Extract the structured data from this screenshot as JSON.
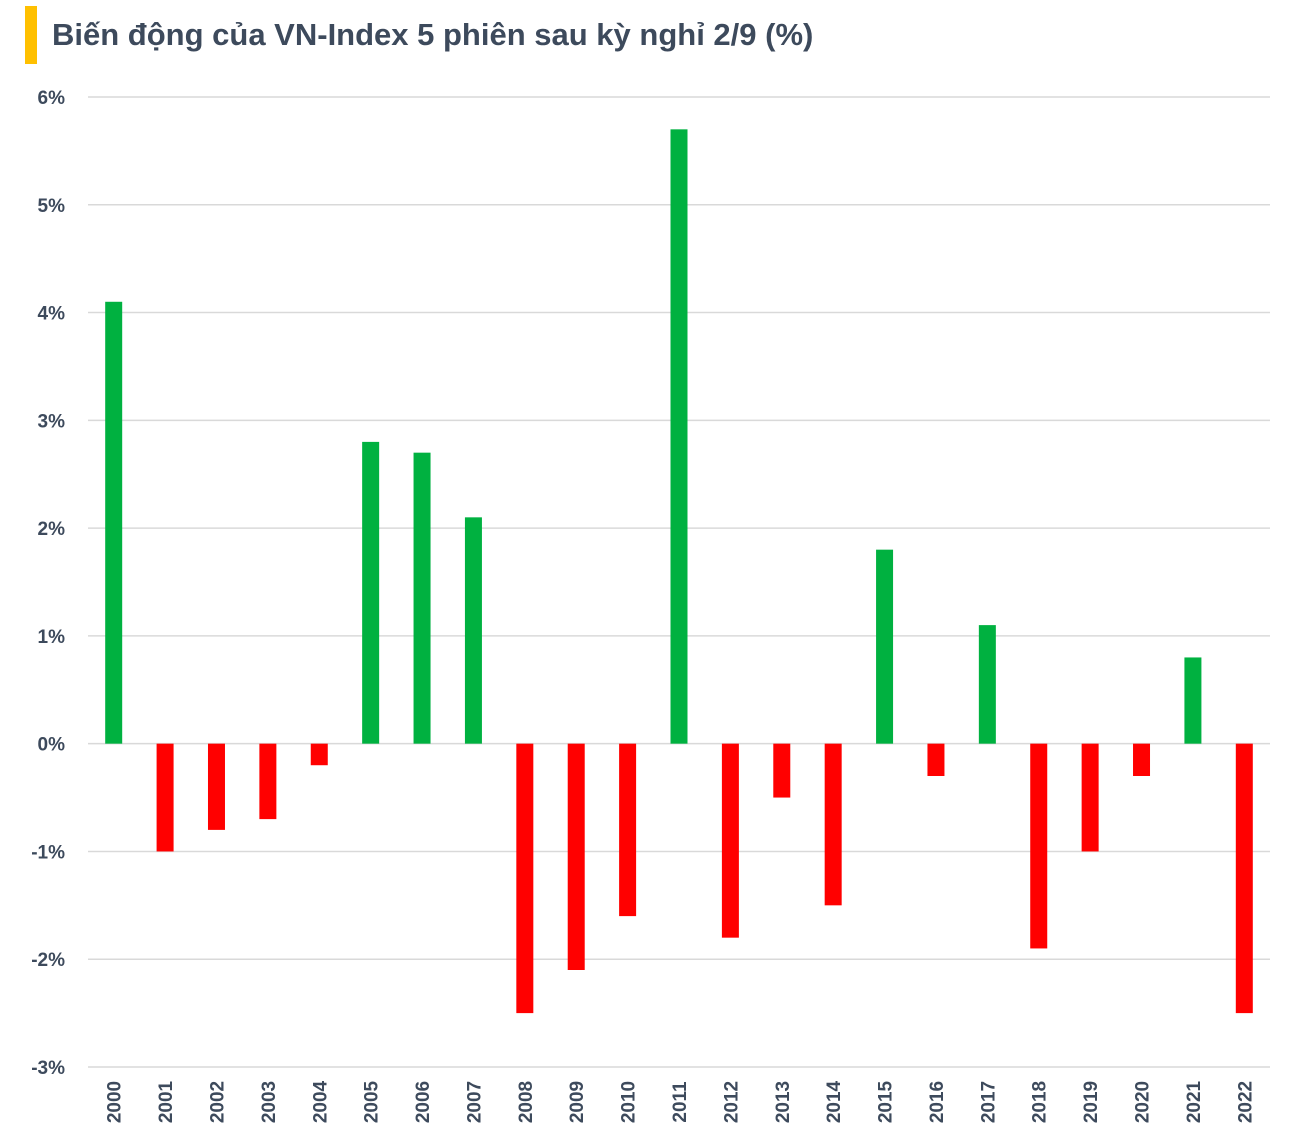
{
  "chart_data": {
    "type": "bar",
    "title": "Biến động của VN-Index 5 phiên sau kỳ nghỉ 2/9 (%)",
    "xlabel": "",
    "ylabel": "",
    "categories": [
      "2000",
      "2001",
      "2002",
      "2003",
      "2004",
      "2005",
      "2006",
      "2007",
      "2008",
      "2009",
      "2010",
      "2011",
      "2012",
      "2013",
      "2014",
      "2015",
      "2016",
      "2017",
      "2018",
      "2019",
      "2020",
      "2021",
      "2022"
    ],
    "values": [
      4.1,
      -1.0,
      -0.8,
      -0.7,
      -0.2,
      2.8,
      2.7,
      2.1,
      -2.5,
      -2.1,
      -1.6,
      5.7,
      -1.8,
      -0.5,
      -1.5,
      1.8,
      -0.3,
      1.1,
      -1.9,
      -1.0,
      -0.3,
      0.8,
      -2.5
    ],
    "ylim": [
      -3,
      6
    ],
    "yticks": [
      6,
      5,
      4,
      3,
      2,
      1,
      0,
      -1,
      -2,
      -3
    ],
    "ytick_labels": [
      "6%",
      "5%",
      "4%",
      "3%",
      "2%",
      "1%",
      "0%",
      "-1%",
      "-2%",
      "-3%"
    ],
    "grid": true,
    "legend": "none",
    "colors": {
      "positive": "#00b140",
      "negative": "#ff0000",
      "accent": "#ffc000",
      "grid": "#d9d9d9",
      "text": "#3d4a5c"
    }
  }
}
